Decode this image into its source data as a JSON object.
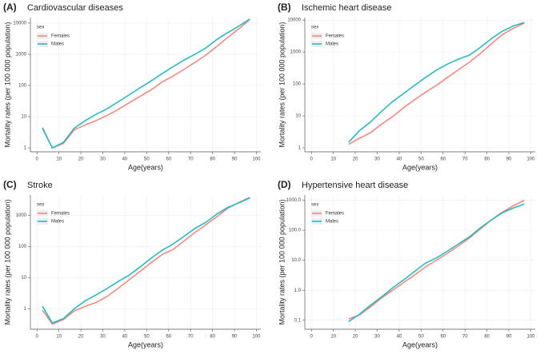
{
  "chart_data": [
    {
      "type": "line",
      "label": "(A)",
      "title": "Cardiovascular diseases",
      "x_label": "Age(years)",
      "y_label": "Mortality rates (per 100 000 population)",
      "log_y": true,
      "grid": true,
      "legend_title": "sex",
      "legend": "top-left",
      "x": [
        2.5,
        7,
        12,
        17,
        22,
        27,
        32,
        37,
        42,
        47,
        52,
        57,
        62,
        67,
        72,
        77,
        82,
        87,
        92,
        97
      ],
      "xlim": [
        -3,
        102
      ],
      "xticks": [
        0,
        10,
        20,
        30,
        40,
        50,
        60,
        70,
        80,
        90,
        100
      ],
      "ylim": [
        0.75,
        15000
      ],
      "yticks": [
        1,
        10,
        100,
        1000,
        10000
      ],
      "series": [
        {
          "name": "Females",
          "color": "#ef8a82",
          "values": [
            4.5,
            1.0,
            1.4,
            3.8,
            5.5,
            7.5,
            11,
            17,
            28,
            45,
            72,
            130,
            200,
            330,
            550,
            950,
            1800,
            3500,
            6500,
            13000
          ]
        },
        {
          "name": "Males",
          "color": "#2bb9bf",
          "values": [
            4.2,
            1.0,
            1.5,
            4.3,
            7.5,
            12,
            18,
            30,
            50,
            85,
            140,
            240,
            400,
            650,
            1000,
            1600,
            3000,
            5000,
            8000,
            13500
          ]
        }
      ]
    },
    {
      "type": "line",
      "label": "(B)",
      "title": "Ischemic heart disease",
      "x_label": "Age(years)",
      "y_label": "Mortality rates (per 100 000 population)",
      "log_y": true,
      "grid": true,
      "legend_title": "sex",
      "legend": "top-left",
      "x": [
        17,
        22,
        27,
        32,
        37,
        42,
        47,
        52,
        57,
        62,
        67,
        72,
        77,
        82,
        87,
        92,
        97
      ],
      "xlim": [
        -3,
        102
      ],
      "xticks": [
        0,
        10,
        20,
        30,
        40,
        50,
        60,
        70,
        80,
        90,
        100
      ],
      "ylim": [
        0.75,
        12000
      ],
      "yticks": [
        1,
        10,
        100,
        1000,
        10000
      ],
      "series": [
        {
          "name": "Females",
          "color": "#ef8a82",
          "values": [
            1.3,
            2.0,
            3.0,
            5.5,
            9.5,
            18,
            32,
            55,
            90,
            160,
            280,
            480,
            900,
            1800,
            3500,
            5500,
            8000
          ]
        },
        {
          "name": "Males",
          "color": "#2bb9bf",
          "values": [
            1.5,
            3.5,
            6.5,
            14,
            28,
            50,
            90,
            160,
            270,
            420,
            600,
            800,
            1400,
            2600,
            4500,
            6500,
            8500
          ]
        }
      ]
    },
    {
      "type": "line",
      "label": "(C)",
      "title": "Stroke",
      "x_label": "Age(years)",
      "y_label": "Mortality rates (per 100 000 population)",
      "log_y": true,
      "grid": true,
      "legend_title": "sex",
      "legend": "top-left",
      "x": [
        2.5,
        7,
        12,
        17,
        22,
        27,
        32,
        37,
        42,
        47,
        52,
        57,
        62,
        67,
        72,
        77,
        82,
        87,
        92,
        97
      ],
      "xlim": [
        -3,
        102
      ],
      "xticks": [
        0,
        10,
        20,
        30,
        40,
        50,
        60,
        70,
        80,
        90,
        100
      ],
      "ylim": [
        0.22,
        4500
      ],
      "yticks": [
        1,
        10,
        100,
        1000
      ],
      "series": [
        {
          "name": "Females",
          "color": "#ef8a82",
          "values": [
            0.9,
            0.32,
            0.45,
            0.85,
            1.2,
            1.6,
            2.5,
            4.5,
            8.5,
            16,
            30,
            55,
            80,
            150,
            280,
            500,
            900,
            1700,
            2600,
            3800
          ]
        },
        {
          "name": "Males",
          "color": "#2bb9bf",
          "values": [
            1.2,
            0.35,
            0.48,
            1.0,
            1.8,
            2.8,
            4.5,
            7.5,
            12,
            22,
            42,
            75,
            120,
            210,
            380,
            600,
            1100,
            1800,
            2500,
            3600
          ]
        }
      ]
    },
    {
      "type": "line",
      "label": "(D)",
      "title": "Hypertensive heart disease",
      "x_label": "Age(years)",
      "y_label": "Mortality rates (per 100 000 population)",
      "log_y": true,
      "grid": true,
      "legend_title": "sex",
      "legend": "top-left",
      "x": [
        17,
        22,
        27,
        32,
        37,
        42,
        47,
        52,
        57,
        62,
        67,
        72,
        77,
        82,
        87,
        92,
        97
      ],
      "xlim": [
        -3,
        102
      ],
      "xticks": [
        0,
        10,
        20,
        30,
        40,
        50,
        60,
        70,
        80,
        90,
        100
      ],
      "ylim": [
        0.05,
        1500
      ],
      "yticks": [
        0.1,
        {
          "value": 1,
          "label": "1.0"
        },
        {
          "value": 10,
          "label": "10.0"
        },
        {
          "value": 100,
          "label": "100.0"
        },
        {
          "value": 1000,
          "label": "1000.0"
        }
      ],
      "series": [
        {
          "name": "Females",
          "color": "#ef8a82",
          "values": [
            0.11,
            0.15,
            0.28,
            0.55,
            1.0,
            1.8,
            3.2,
            6,
            10,
            17,
            30,
            55,
            110,
            220,
            400,
            650,
            1000
          ]
        },
        {
          "name": "Males",
          "color": "#2bb9bf",
          "values": [
            0.09,
            0.16,
            0.32,
            0.6,
            1.2,
            2.2,
            4.2,
            8,
            12,
            20,
            35,
            60,
            120,
            220,
            380,
            550,
            750
          ]
        }
      ]
    }
  ]
}
